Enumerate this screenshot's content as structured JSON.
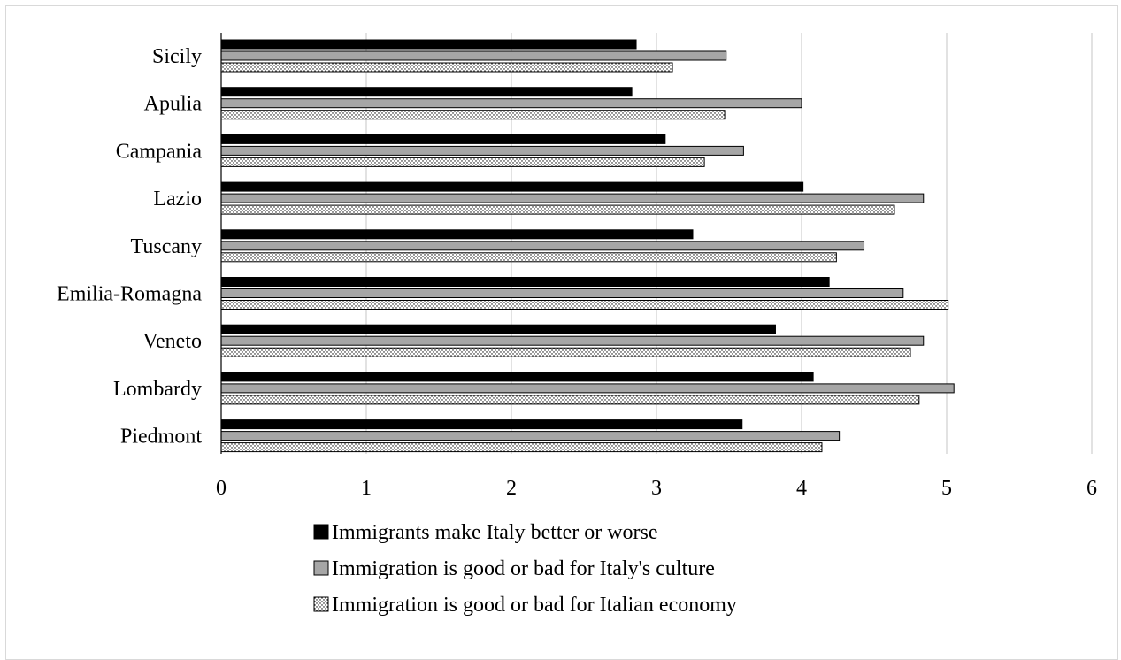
{
  "chart_data": {
    "type": "bar",
    "orientation": "horizontal",
    "title": "",
    "xlabel": "",
    "ylabel": "",
    "categories": [
      "Sicily",
      "Apulia",
      "Campania",
      "Lazio",
      "Tuscany",
      "Emilia-Romagna",
      "Veneto",
      "Lombardy",
      "Piedmont"
    ],
    "series": [
      {
        "name": "Immigrants make Italy better or worse",
        "pattern": "solid-black",
        "values": [
          2.86,
          2.83,
          3.06,
          4.01,
          3.25,
          4.19,
          3.82,
          4.08,
          3.59
        ]
      },
      {
        "name": "Immigration is good or bad for Italy's culture",
        "pattern": "solid-gray",
        "values": [
          3.48,
          4.0,
          3.6,
          4.84,
          4.43,
          4.7,
          4.84,
          5.05,
          4.26
        ]
      },
      {
        "name": "Immigration is good or bad for Italian economy",
        "pattern": "dotted",
        "values": [
          3.11,
          3.47,
          3.33,
          4.64,
          4.24,
          5.01,
          4.75,
          4.81,
          4.14
        ]
      }
    ],
    "xlim": [
      0,
      6
    ],
    "xticks": [
      "0",
      "1",
      "2",
      "3",
      "4",
      "5",
      "6"
    ],
    "grid": "vertical",
    "legend_position": "bottom"
  },
  "colors": {
    "series_1": "#000000",
    "series_2": "#a6a6a6",
    "series_3_dots": "#000000",
    "gridline": "#d9d9d9"
  }
}
